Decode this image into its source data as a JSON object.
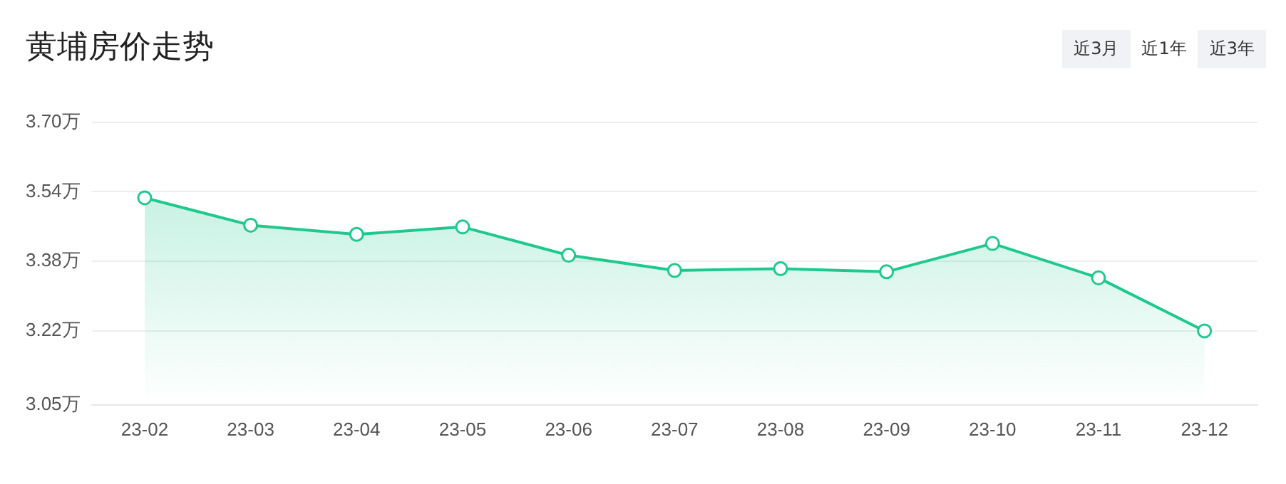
{
  "chart_data": {
    "type": "area",
    "title": "黄埔房价走势",
    "annotations": [
      "近3月",
      "近1年",
      "近3年"
    ],
    "categories": [
      "23-02",
      "23-03",
      "23-04",
      "23-05",
      "23-06",
      "23-07",
      "23-08",
      "23-09",
      "23-10",
      "23-11",
      "23-12"
    ],
    "series": [
      {
        "color": "#1fc98e",
        "values": [
          3.526,
          3.463,
          3.442,
          3.459,
          3.394,
          3.359,
          3.363,
          3.356,
          3.421,
          3.342,
          3.22
        ]
      }
    ],
    "ylim": [
      3.05,
      3.7
    ],
    "yticks": [
      {
        "value": 3.05,
        "label": "3.05万"
      },
      {
        "value": 3.22,
        "label": "3.22万"
      },
      {
        "value": 3.38,
        "label": "3.38万"
      },
      {
        "value": 3.54,
        "label": "3.54万"
      },
      {
        "value": 3.7,
        "label": "3.70万"
      }
    ],
    "grid": "y",
    "legend": false,
    "marker": "circle",
    "line_style": "solid"
  }
}
